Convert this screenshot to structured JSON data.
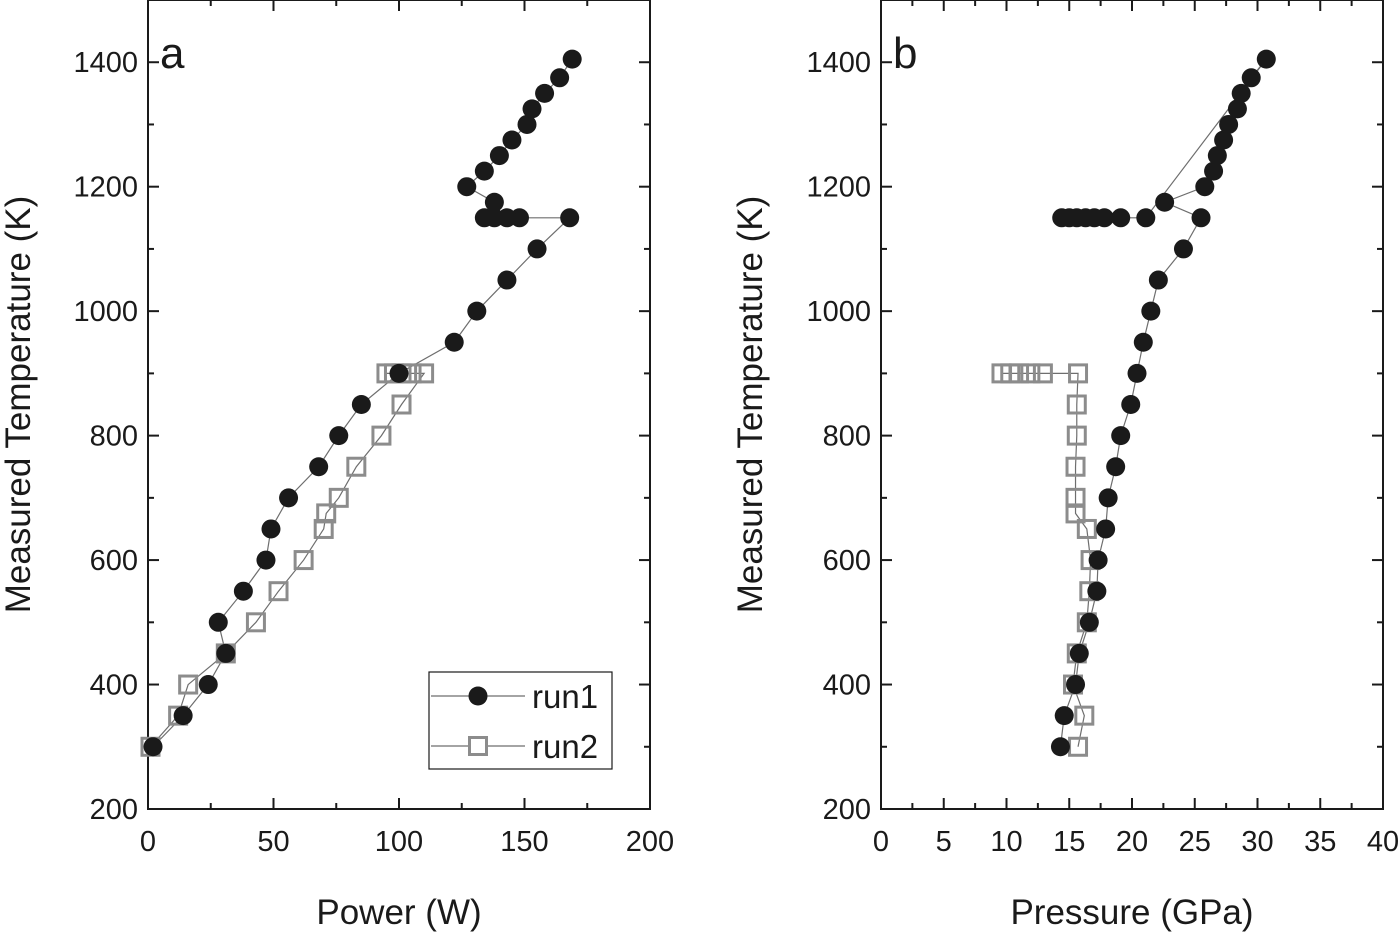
{
  "chart_data": [
    {
      "type": "scatter",
      "panel_label": "a",
      "xlabel": "Power (W)",
      "ylabel": "Measured Temperature (K)",
      "xlim": [
        0,
        200
      ],
      "ylim": [
        200,
        1500
      ],
      "xticks": [
        0,
        50,
        100,
        150,
        200
      ],
      "yticks": [
        200,
        400,
        600,
        800,
        1000,
        1200,
        1400
      ],
      "legend": {
        "placement": "bottom-right",
        "entries": [
          "run1",
          "run2"
        ]
      },
      "series": [
        {
          "name": "run1",
          "marker": "filled-circle",
          "color": "#1a1a1a",
          "points": [
            [
              2,
              300
            ],
            [
              14,
              350
            ],
            [
              24,
              400
            ],
            [
              31,
              450
            ],
            [
              28,
              500
            ],
            [
              38,
              550
            ],
            [
              47,
              600
            ],
            [
              49,
              650
            ],
            [
              56,
              700
            ],
            [
              68,
              750
            ],
            [
              76,
              800
            ],
            [
              85,
              850
            ],
            [
              100,
              900
            ],
            [
              122,
              950
            ],
            [
              131,
              1000
            ],
            [
              143,
              1050
            ],
            [
              155,
              1100
            ],
            [
              168,
              1150
            ],
            [
              148,
              1150
            ],
            [
              143,
              1150
            ],
            [
              138,
              1150
            ],
            [
              134,
              1150
            ],
            [
              138,
              1175
            ],
            [
              127,
              1200
            ],
            [
              134,
              1225
            ],
            [
              140,
              1250
            ],
            [
              145,
              1275
            ],
            [
              151,
              1300
            ],
            [
              153,
              1325
            ],
            [
              158,
              1350
            ],
            [
              164,
              1375
            ],
            [
              169,
              1405
            ]
          ]
        },
        {
          "name": "run2",
          "marker": "open-square",
          "color": "#8c8c8c",
          "points": [
            [
              1,
              300
            ],
            [
              12,
              350
            ],
            [
              16,
              400
            ],
            [
              31,
              450
            ],
            [
              43,
              500
            ],
            [
              52,
              550
            ],
            [
              62,
              600
            ],
            [
              70,
              650
            ],
            [
              71,
              675
            ],
            [
              76,
              700
            ],
            [
              83,
              750
            ],
            [
              93,
              800
            ],
            [
              101,
              850
            ],
            [
              110,
              900
            ],
            [
              105,
              900
            ],
            [
              101,
              900
            ],
            [
              98,
              900
            ],
            [
              95,
              900
            ]
          ]
        }
      ]
    },
    {
      "type": "scatter",
      "panel_label": "b",
      "xlabel": "Pressure (GPa)",
      "ylabel": "Measured Temperature (K)",
      "xlim": [
        0,
        40
      ],
      "ylim": [
        200,
        1500
      ],
      "xticks": [
        0,
        5,
        10,
        15,
        20,
        25,
        30,
        35,
        40
      ],
      "yticks": [
        200,
        400,
        600,
        800,
        1000,
        1200,
        1400
      ],
      "series": [
        {
          "name": "run1",
          "marker": "filled-circle",
          "color": "#1a1a1a",
          "points": [
            [
              14.3,
              300
            ],
            [
              14.6,
              350
            ],
            [
              15.5,
              400
            ],
            [
              15.8,
              450
            ],
            [
              16.6,
              500
            ],
            [
              17.2,
              550
            ],
            [
              17.3,
              600
            ],
            [
              17.9,
              650
            ],
            [
              18.1,
              700
            ],
            [
              18.7,
              750
            ],
            [
              19.1,
              800
            ],
            [
              19.9,
              850
            ],
            [
              20.4,
              900
            ],
            [
              20.9,
              950
            ],
            [
              21.5,
              1000
            ],
            [
              22.1,
              1050
            ],
            [
              24.1,
              1100
            ],
            [
              25.5,
              1150
            ],
            [
              22.6,
              1175
            ],
            [
              25.8,
              1200
            ],
            [
              26.5,
              1225
            ],
            [
              26.8,
              1250
            ],
            [
              27.3,
              1275
            ],
            [
              27.7,
              1300
            ],
            [
              28.4,
              1325
            ],
            [
              28.7,
              1350
            ],
            [
              29.5,
              1375
            ],
            [
              30.7,
              1405
            ],
            [
              21.1,
              1150
            ],
            [
              19.1,
              1150
            ],
            [
              17.8,
              1150
            ],
            [
              17.0,
              1150
            ],
            [
              16.3,
              1150
            ],
            [
              15.6,
              1150
            ],
            [
              15.0,
              1150
            ],
            [
              14.4,
              1150
            ]
          ]
        },
        {
          "name": "run2",
          "marker": "open-square",
          "color": "#8c8c8c",
          "points": [
            [
              15.7,
              300
            ],
            [
              16.2,
              350
            ],
            [
              15.3,
              400
            ],
            [
              15.6,
              450
            ],
            [
              16.4,
              500
            ],
            [
              16.6,
              550
            ],
            [
              16.7,
              600
            ],
            [
              16.4,
              650
            ],
            [
              15.5,
              675
            ],
            [
              15.5,
              700
            ],
            [
              15.5,
              750
            ],
            [
              15.6,
              800
            ],
            [
              15.6,
              850
            ],
            [
              15.7,
              900
            ],
            [
              12.9,
              900
            ],
            [
              11.9,
              900
            ],
            [
              11.0,
              900
            ],
            [
              10.3,
              900
            ],
            [
              9.6,
              900
            ]
          ]
        }
      ]
    }
  ]
}
